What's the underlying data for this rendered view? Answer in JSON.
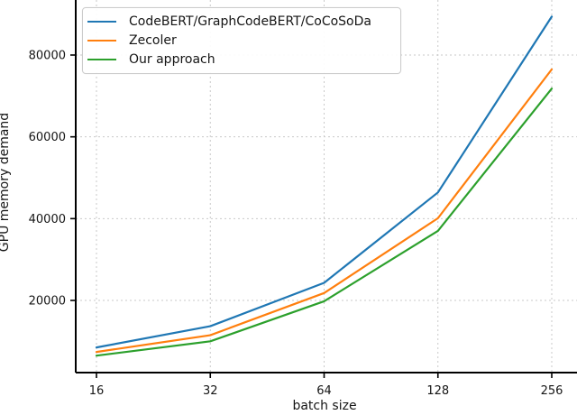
{
  "chart_data": {
    "type": "line",
    "title": "",
    "xlabel": "batch size",
    "ylabel": "GPU memory demand",
    "categories": [
      16,
      32,
      64,
      128,
      256
    ],
    "x_tick_labels": [
      "16",
      "32",
      "64",
      "128",
      "256"
    ],
    "y_ticks": [
      20000,
      40000,
      60000,
      80000
    ],
    "y_tick_labels": [
      "20000",
      "40000",
      "60000",
      "80000"
    ],
    "ylim": [
      2350,
      93450
    ],
    "grid": true,
    "grid_style": "dotted",
    "legend_position": "upper left",
    "series": [
      {
        "name": "CodeBERT/GraphCodeBERT/CoCoSoDa",
        "color": "#1f77b4",
        "values": [
          8500,
          13700,
          24300,
          46400,
          89400
        ]
      },
      {
        "name": "Zecoler",
        "color": "#ff7f0e",
        "values": [
          7400,
          11500,
          21800,
          40100,
          76500
        ]
      },
      {
        "name": "Our approach",
        "color": "#2ca02c",
        "values": [
          6500,
          10000,
          19800,
          37000,
          71800
        ]
      }
    ],
    "colors": {
      "spine": "#000000",
      "gridline": "#c9c9c9",
      "text": "#151515"
    }
  }
}
